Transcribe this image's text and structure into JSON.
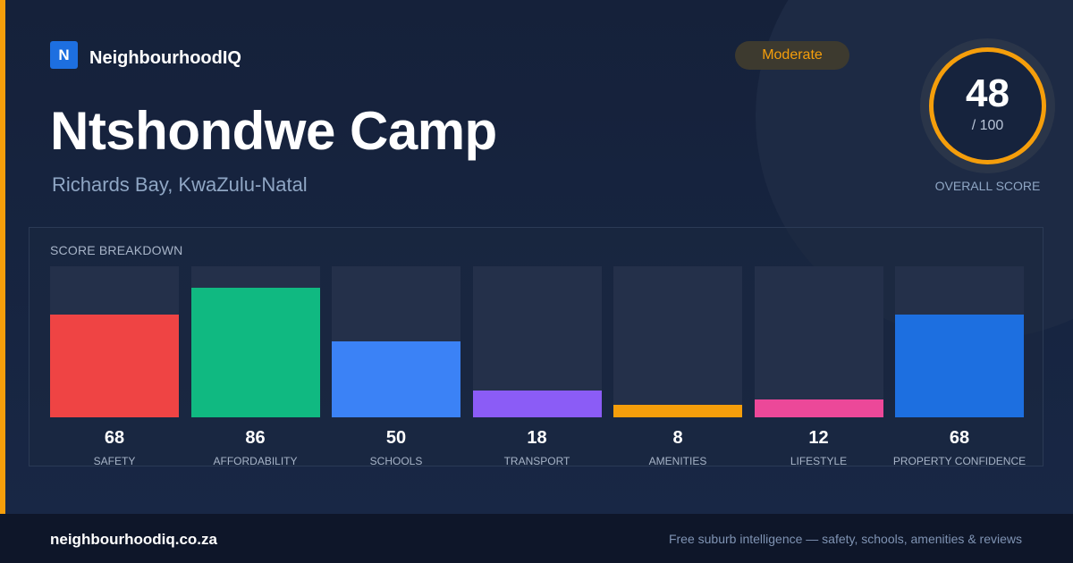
{
  "brand": {
    "logo_letter": "N",
    "name": "NeighbourhoodIQ"
  },
  "suburb": {
    "name": "Ntshondwe Camp",
    "location": "Richards Bay, KwaZulu-Natal"
  },
  "rating_badge": "Moderate",
  "overall": {
    "score": "48",
    "max": "/ 100",
    "caption": "OVERALL SCORE",
    "fraction": 0.48
  },
  "breakdown": {
    "heading": "SCORE BREAKDOWN",
    "items": [
      {
        "label": "SAFETY",
        "value": "68",
        "color": "#ef4444"
      },
      {
        "label": "AFFORDABILITY",
        "value": "86",
        "color": "#10b981"
      },
      {
        "label": "SCHOOLS",
        "value": "50",
        "color": "#3b82f6"
      },
      {
        "label": "TRANSPORT",
        "value": "18",
        "color": "#8b5cf6"
      },
      {
        "label": "AMENITIES",
        "value": "8",
        "color": "#f59e0b"
      },
      {
        "label": "LIFESTYLE",
        "value": "12",
        "color": "#ec4899"
      },
      {
        "label": "PROPERTY CONFIDENCE",
        "value": "68",
        "color": "#1d6fe0"
      }
    ]
  },
  "colors": {
    "accent": "#f59e0b",
    "brand": "#1d6fe0",
    "background": "#16233d",
    "footer": "#0e1629"
  },
  "footer": {
    "url": "neighbourhoodiq.co.za",
    "tagline": "Free suburb intelligence — safety, schools, amenities & reviews"
  }
}
